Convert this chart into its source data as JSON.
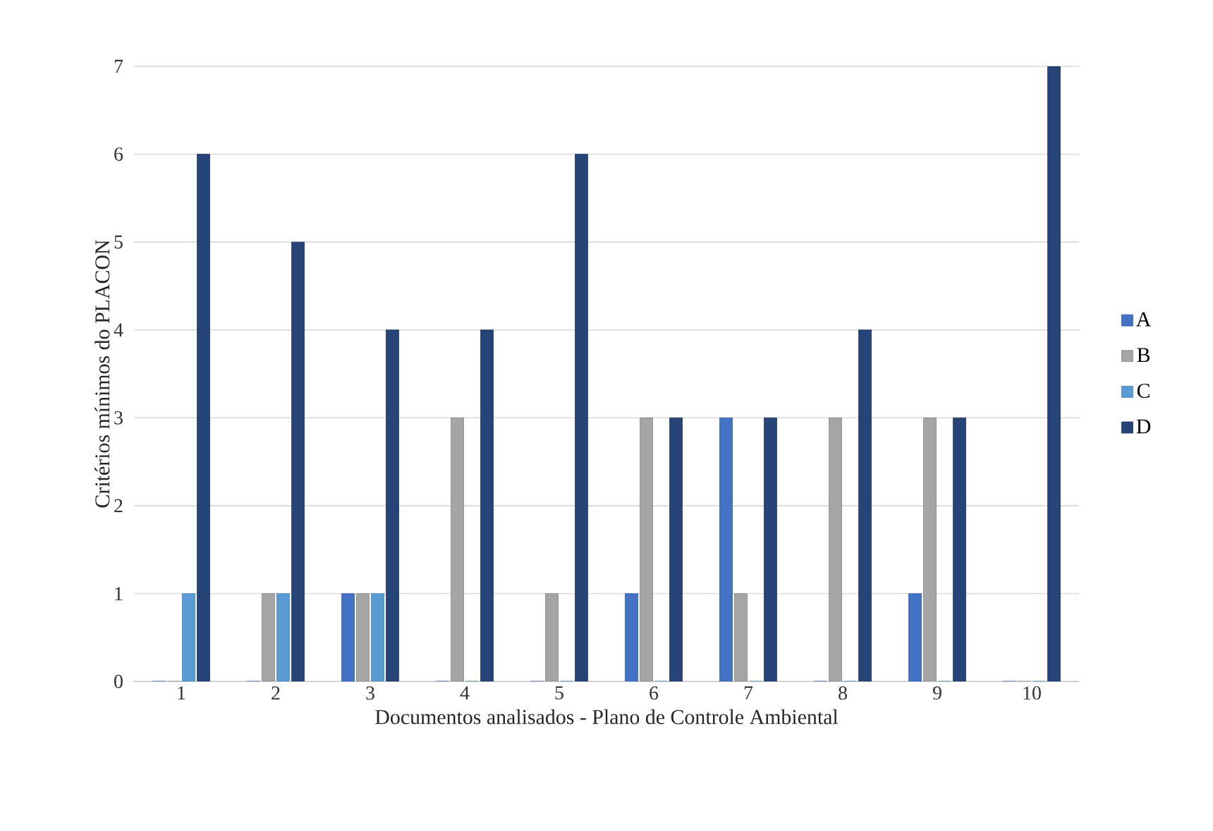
{
  "chart_data": {
    "type": "bar",
    "xlabel": "Documentos analisados - Plano de Controle Ambiental",
    "ylabel": "Critérios mínimos do PLACON",
    "categories": [
      "1",
      "2",
      "3",
      "4",
      "5",
      "6",
      "7",
      "8",
      "9",
      "10"
    ],
    "series": [
      {
        "name": "A",
        "color": "#4472c4",
        "values": [
          0,
          0,
          1,
          0,
          0,
          1,
          3,
          0,
          1,
          0
        ]
      },
      {
        "name": "B",
        "color": "#a5a5a5",
        "values": [
          0,
          1,
          1,
          3,
          1,
          3,
          1,
          3,
          3,
          0
        ]
      },
      {
        "name": "C",
        "color": "#5b9bd5",
        "values": [
          1,
          1,
          1,
          0,
          0,
          0,
          0,
          0,
          0,
          0
        ]
      },
      {
        "name": "D",
        "color": "#264478",
        "values": [
          6,
          5,
          4,
          4,
          6,
          3,
          3,
          4,
          3,
          7
        ]
      }
    ],
    "ylim": [
      0,
      7
    ],
    "yticks": [
      0,
      1,
      2,
      3,
      4,
      5,
      6,
      7
    ],
    "grid": "y",
    "legend": "right"
  }
}
